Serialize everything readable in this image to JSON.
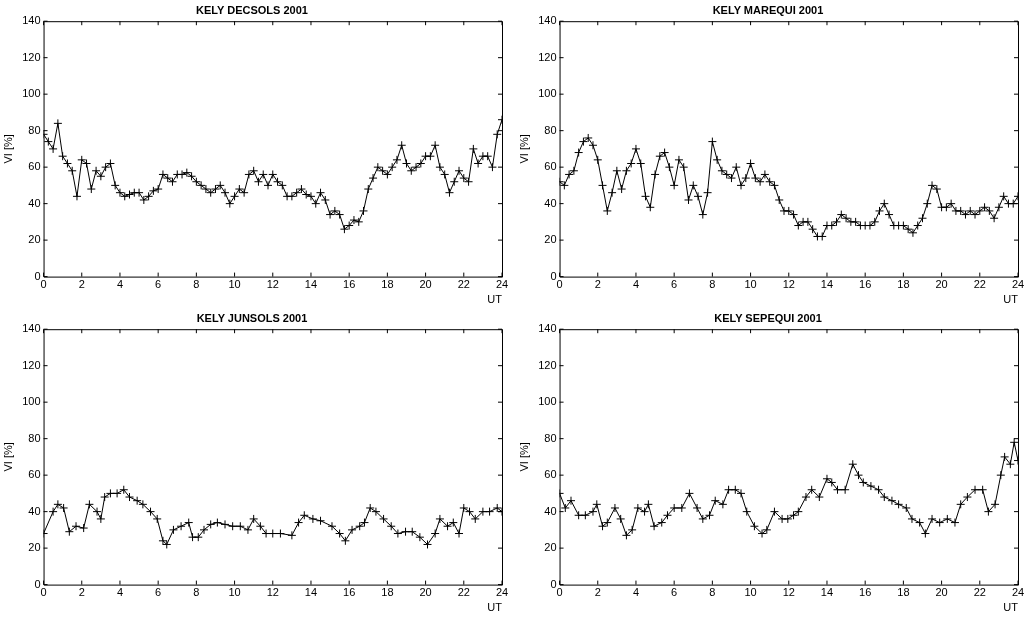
{
  "chart_data": [
    {
      "type": "line",
      "title": "KELY DECSOLS 2001",
      "xlabel": "UT",
      "ylabel": "VI [%]",
      "color": "#000000",
      "marker": "cross",
      "line_style": "solid",
      "xlim": [
        0,
        24
      ],
      "xticks": [
        0,
        2,
        4,
        6,
        8,
        10,
        12,
        14,
        16,
        18,
        20,
        22,
        24
      ],
      "ylim": [
        0,
        140
      ],
      "yticks": [
        0,
        20,
        40,
        60,
        80,
        100,
        120,
        140
      ],
      "x": [
        0,
        0.25,
        0.5,
        0.75,
        1,
        1.25,
        1.5,
        1.75,
        2,
        2.25,
        2.5,
        2.75,
        3,
        3.25,
        3.5,
        3.75,
        4,
        4.25,
        4.5,
        4.75,
        5,
        5.25,
        5.5,
        5.75,
        6,
        6.25,
        6.5,
        6.75,
        7,
        7.25,
        7.5,
        7.75,
        8,
        8.25,
        8.5,
        8.75,
        9,
        9.25,
        9.5,
        9.75,
        10,
        10.25,
        10.5,
        10.75,
        11,
        11.25,
        11.5,
        11.75,
        12,
        12.25,
        12.5,
        12.75,
        13,
        13.25,
        13.5,
        13.75,
        14,
        14.25,
        14.5,
        14.75,
        15,
        15.25,
        15.5,
        15.75,
        16,
        16.25,
        16.5,
        16.75,
        17,
        17.25,
        17.5,
        17.75,
        18,
        18.25,
        18.5,
        18.75,
        19,
        19.25,
        19.5,
        19.75,
        20,
        20.25,
        20.5,
        20.75,
        21,
        21.25,
        21.5,
        21.75,
        22,
        22.25,
        22.5,
        22.75,
        23,
        23.25,
        23.5,
        23.75,
        24
      ],
      "values": [
        78,
        74,
        70,
        84,
        66,
        62,
        58,
        44,
        64,
        62,
        48,
        58,
        55,
        60,
        62,
        50,
        46,
        44,
        45,
        46,
        46,
        42,
        44,
        47,
        48,
        56,
        54,
        52,
        56,
        56,
        57,
        55,
        52,
        50,
        48,
        46,
        48,
        50,
        46,
        40,
        44,
        48,
        46,
        56,
        58,
        52,
        56,
        50,
        56,
        52,
        50,
        44,
        44,
        46,
        48,
        45,
        44,
        40,
        46,
        42,
        34,
        36,
        34,
        26,
        28,
        31,
        30,
        36,
        48,
        54,
        60,
        58,
        56,
        60,
        64,
        72,
        62,
        58,
        60,
        62,
        66,
        66,
        72,
        60,
        56,
        46,
        52,
        58,
        54,
        52,
        70,
        62,
        66,
        66,
        60,
        78,
        86
      ]
    },
    {
      "type": "line",
      "title": "KELY MAREQUI 2001",
      "xlabel": "UT",
      "ylabel": "VI [%]",
      "color": "#000000",
      "marker": "cross",
      "line_style": "solid",
      "xlim": [
        0,
        24
      ],
      "xticks": [
        0,
        2,
        4,
        6,
        8,
        10,
        12,
        14,
        16,
        18,
        20,
        22,
        24
      ],
      "ylim": [
        0,
        140
      ],
      "yticks": [
        0,
        20,
        40,
        60,
        80,
        100,
        120,
        140
      ],
      "x": [
        0,
        0.25,
        0.5,
        0.75,
        1,
        1.25,
        1.5,
        1.75,
        2,
        2.25,
        2.5,
        2.75,
        3,
        3.25,
        3.5,
        3.75,
        4,
        4.25,
        4.5,
        4.75,
        5,
        5.25,
        5.5,
        5.75,
        6,
        6.25,
        6.5,
        6.75,
        7,
        7.25,
        7.5,
        7.75,
        8,
        8.25,
        8.5,
        8.75,
        9,
        9.25,
        9.5,
        9.75,
        10,
        10.25,
        10.5,
        10.75,
        11,
        11.25,
        11.5,
        11.75,
        12,
        12.25,
        12.5,
        12.75,
        13,
        13.25,
        13.5,
        13.75,
        14,
        14.25,
        14.5,
        14.75,
        15,
        15.25,
        15.5,
        15.75,
        16,
        16.25,
        16.5,
        16.75,
        17,
        17.25,
        17.5,
        17.75,
        18,
        18.25,
        18.5,
        18.75,
        19,
        19.25,
        19.5,
        19.75,
        20,
        20.25,
        20.5,
        20.75,
        21,
        21.25,
        21.5,
        21.75,
        22,
        22.25,
        22.5,
        22.75,
        23,
        23.25,
        23.5,
        23.75,
        24
      ],
      "values": [
        52,
        50,
        56,
        58,
        68,
        74,
        76,
        72,
        64,
        50,
        36,
        46,
        58,
        48,
        58,
        62,
        70,
        62,
        44,
        38,
        56,
        66,
        68,
        60,
        50,
        64,
        60,
        42,
        50,
        44,
        34,
        46,
        74,
        64,
        58,
        56,
        54,
        60,
        50,
        54,
        62,
        54,
        52,
        56,
        52,
        50,
        42,
        36,
        36,
        34,
        28,
        30,
        30,
        26,
        22,
        22,
        28,
        28,
        30,
        34,
        32,
        30,
        30,
        28,
        28,
        28,
        30,
        36,
        40,
        34,
        28,
        28,
        28,
        26,
        24,
        28,
        32,
        40,
        50,
        48,
        38,
        38,
        40,
        36,
        36,
        34,
        36,
        34,
        36,
        38,
        36,
        32,
        38,
        44,
        40,
        40,
        44
      ]
    },
    {
      "type": "line",
      "title": "KELY JUNSOLS 2001",
      "xlabel": "UT",
      "ylabel": "VI [%]",
      "color": "#000000",
      "marker": "cross",
      "line_style": "solid",
      "xlim": [
        0,
        24
      ],
      "xticks": [
        0,
        2,
        4,
        6,
        8,
        10,
        12,
        14,
        16,
        18,
        20,
        22,
        24
      ],
      "ylim": [
        0,
        140
      ],
      "yticks": [
        0,
        20,
        40,
        60,
        80,
        100,
        120,
        140
      ],
      "x": [
        0,
        0.5,
        0.75,
        1.05,
        1.35,
        1.7,
        2.1,
        2.4,
        2.8,
        3,
        3.2,
        3.5,
        3.85,
        4.2,
        4.5,
        4.9,
        5.2,
        5.6,
        5.95,
        6.25,
        6.45,
        6.8,
        7.2,
        7.6,
        7.8,
        8.1,
        8.4,
        8.75,
        9.1,
        9.5,
        9.9,
        10.3,
        10.7,
        11,
        11.35,
        11.65,
        12,
        12.4,
        13,
        13.35,
        13.65,
        14.1,
        14.5,
        15.1,
        15.5,
        15.8,
        16.15,
        16.55,
        16.8,
        17.1,
        17.4,
        17.8,
        18.2,
        18.55,
        18.95,
        19.3,
        19.7,
        20.1,
        20.5,
        20.75,
        21.15,
        21.45,
        21.75,
        22,
        22.3,
        22.6,
        23,
        23.35,
        23.75,
        24
      ],
      "values": [
        28,
        40,
        44,
        42,
        29,
        32,
        31,
        44,
        40,
        36,
        48,
        50,
        50,
        52,
        48,
        46,
        44,
        40,
        36,
        24,
        22,
        30,
        32,
        34,
        26,
        26,
        30,
        33,
        34,
        33,
        32,
        32,
        30,
        36,
        32,
        28,
        28,
        28,
        27,
        34,
        38,
        36,
        35,
        32,
        28,
        24,
        30,
        32,
        34,
        42,
        40,
        36,
        32,
        28,
        29,
        29,
        26,
        22,
        28,
        36,
        32,
        34,
        28,
        42,
        40,
        36,
        40,
        40,
        42,
        40
      ]
    },
    {
      "type": "line",
      "title": "KELY SEPEQUI 2001",
      "xlabel": "UT",
      "ylabel": "VI [%]",
      "color": "#000000",
      "marker": "cross",
      "line_style": "solid",
      "xlim": [
        0,
        24
      ],
      "xticks": [
        0,
        2,
        4,
        6,
        8,
        10,
        12,
        14,
        16,
        18,
        20,
        22,
        24
      ],
      "ylim": [
        0,
        140
      ],
      "yticks": [
        0,
        20,
        40,
        60,
        80,
        100,
        120,
        140
      ],
      "x": [
        0,
        0.3,
        0.6,
        1,
        1.35,
        1.75,
        1.95,
        2.25,
        2.5,
        2.9,
        3.2,
        3.5,
        3.8,
        4.1,
        4.45,
        4.65,
        4.95,
        5.35,
        5.65,
        6,
        6.4,
        6.8,
        7.2,
        7.5,
        7.85,
        8.15,
        8.55,
        8.85,
        9.2,
        9.5,
        9.8,
        10.2,
        10.6,
        10.85,
        11.25,
        11.65,
        11.95,
        12.25,
        12.5,
        12.9,
        13.2,
        13.6,
        14,
        14.25,
        14.55,
        14.95,
        15.35,
        15.65,
        15.9,
        16.3,
        16.7,
        17,
        17.4,
        17.75,
        18.15,
        18.45,
        18.85,
        19.15,
        19.5,
        19.9,
        20.3,
        20.7,
        21,
        21.35,
        21.75,
        22.15,
        22.45,
        22.8,
        23.1,
        23.3,
        23.6,
        23.8,
        24
      ],
      "values": [
        50,
        42,
        46,
        38,
        38,
        40,
        44,
        32,
        34,
        42,
        36,
        27,
        30,
        42,
        40,
        44,
        32,
        34,
        38,
        42,
        42,
        50,
        42,
        36,
        38,
        46,
        44,
        52,
        52,
        50,
        40,
        32,
        28,
        30,
        40,
        36,
        36,
        38,
        40,
        48,
        52,
        48,
        58,
        56,
        52,
        52,
        66,
        60,
        56,
        54,
        52,
        48,
        46,
        44,
        42,
        36,
        34,
        28,
        36,
        34,
        36,
        34,
        44,
        48,
        52,
        52,
        40,
        44,
        60,
        70,
        66,
        78,
        68
      ]
    }
  ]
}
